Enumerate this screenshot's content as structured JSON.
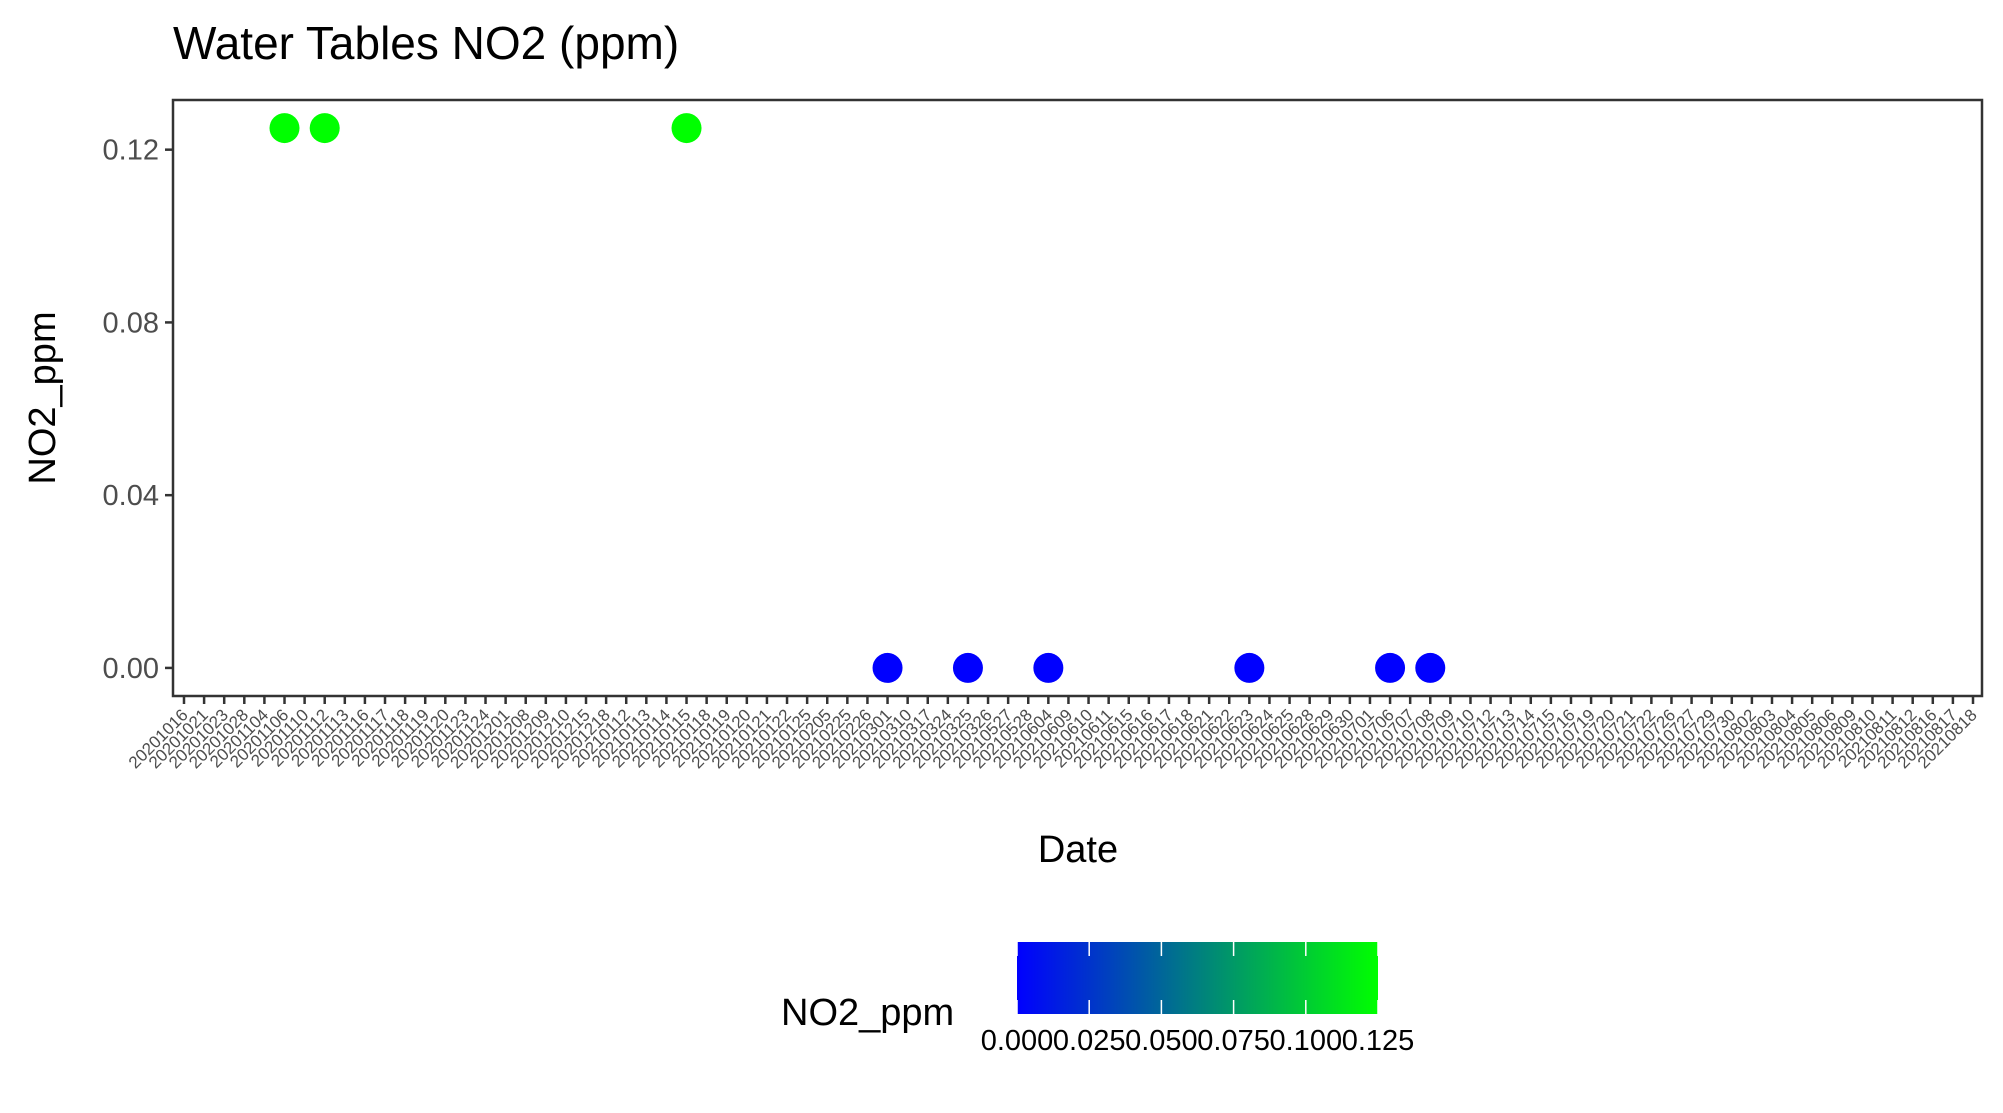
{
  "chart_data": {
    "type": "scatter",
    "title": "Water Tables NO2 (ppm)",
    "xlabel": "Date",
    "ylabel": "NO2_ppm",
    "ylim": [
      -0.0065,
      0.1315
    ],
    "yticks": [
      "0.00",
      "0.04",
      "0.08",
      "0.12"
    ],
    "ytick_values": [
      0,
      0.04,
      0.08,
      0.12
    ],
    "x_categories": [
      "20201016",
      "20201021",
      "20201023",
      "20201028",
      "20201104",
      "20201106",
      "20201110",
      "20201112",
      "20201113",
      "20201116",
      "20201117",
      "20201118",
      "20201119",
      "20201120",
      "20201123",
      "20201124",
      "20201201",
      "20201208",
      "20201209",
      "20201210",
      "20201215",
      "20201218",
      "20210112",
      "20210113",
      "20210114",
      "20210115",
      "20210118",
      "20210119",
      "20210120",
      "20210121",
      "20210122",
      "20210125",
      "20210205",
      "20210225",
      "20210226",
      "20210301",
      "20210310",
      "20210317",
      "20210324",
      "20210325",
      "20210326",
      "20210527",
      "20210528",
      "20210604",
      "20210609",
      "20210610",
      "20210611",
      "20210615",
      "20210616",
      "20210617",
      "20210618",
      "20210621",
      "20210622",
      "20210623",
      "20210624",
      "20210625",
      "20210628",
      "20210629",
      "20210630",
      "20210701",
      "20210706",
      "20210707",
      "20210708",
      "20210709",
      "20210710",
      "20210712",
      "20210713",
      "20210714",
      "20210715",
      "20210716",
      "20210719",
      "20210720",
      "20210721",
      "20210722",
      "20210726",
      "20210727",
      "20210729",
      "20210730",
      "20210802",
      "20210803",
      "20210804",
      "20210805",
      "20210806",
      "20210809",
      "20210810",
      "20210811",
      "20210812",
      "20210816",
      "20210817",
      "20210818"
    ],
    "points": [
      {
        "x": "20201106",
        "y": 0.125
      },
      {
        "x": "20201112",
        "y": 0.125
      },
      {
        "x": "20210115",
        "y": 0.125
      },
      {
        "x": "20210301",
        "y": 0
      },
      {
        "x": "20210325",
        "y": 0
      },
      {
        "x": "20210604",
        "y": 0
      },
      {
        "x": "20210623",
        "y": 0
      },
      {
        "x": "20210706",
        "y": 0
      },
      {
        "x": "20210708",
        "y": 0
      }
    ],
    "legend": {
      "title": "NO2_ppm",
      "position": "bottom",
      "labels": [
        "0.000",
        "0.025",
        "0.050",
        "0.075",
        "0.100",
        "0.125"
      ],
      "values": [
        0,
        0.025,
        0.05,
        0.075,
        0.1,
        0.125
      ],
      "range": [
        0,
        0.125
      ]
    },
    "colors": {
      "low": "#0000ff",
      "high": "#00ff00",
      "frame": "#333333",
      "tick_text": "#4d4d4d"
    },
    "grid": false
  }
}
